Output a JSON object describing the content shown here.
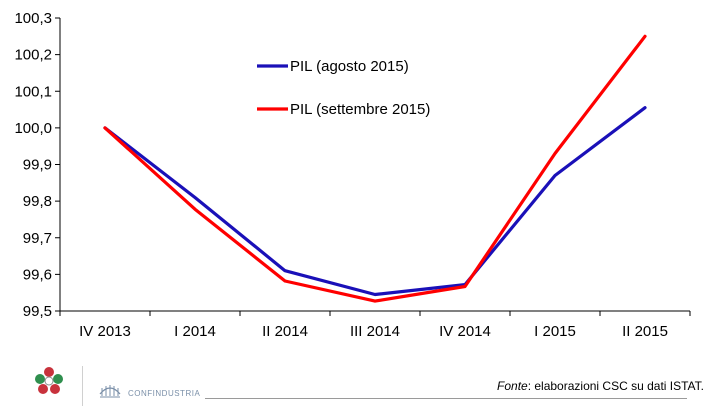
{
  "chart_data": {
    "type": "line",
    "title": "",
    "xlabel": "",
    "ylabel": "",
    "categories": [
      "IV 2013",
      "I 2014",
      "II 2014",
      "III 2014",
      "IV 2014",
      "I 2015",
      "II 2015"
    ],
    "ylim": [
      99.5,
      100.3
    ],
    "yticks": [
      "99,5",
      "99,6",
      "99,7",
      "99,8",
      "99,9",
      "100,0",
      "100,1",
      "100,2",
      "100,3"
    ],
    "grid": false,
    "legend_position": "top-center",
    "series": [
      {
        "name": "PIL (agosto 2015)",
        "color": "#1a10b8",
        "values": [
          100.0,
          99.81,
          99.61,
          99.545,
          99.572,
          99.87,
          100.055
        ]
      },
      {
        "name": "PIL (settembre 2015)",
        "color": "#ff0000",
        "values": [
          100.0,
          99.778,
          99.582,
          99.527,
          99.567,
          99.93,
          100.25
        ]
      }
    ]
  },
  "footer": {
    "source_label": "Fonte",
    "source_text": ": elaborazioni CSC su dati ISTAT.",
    "logo_text": "CONFINDUSTRIA",
    "logo_icon": "confindustria-logo-icon",
    "mark_icon": "csc-emblem-icon"
  }
}
